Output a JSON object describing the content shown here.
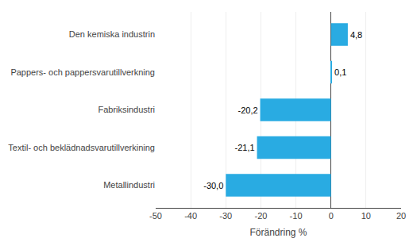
{
  "chart_data": {
    "type": "bar",
    "orientation": "horizontal",
    "categories": [
      "Metallindustri",
      "Textil- och beklädnadsvarutillverkining",
      "Fabriksindustri",
      "Pappers- och pappersvarutillverkning",
      "Den kemiska industrin"
    ],
    "values": [
      -30.0,
      -21.1,
      -20.2,
      0.1,
      4.8
    ],
    "value_labels": [
      "-30,0",
      "-21,1",
      "-20,2",
      "0,1",
      "4,8"
    ],
    "data_labels": true,
    "color": "#29ABE2",
    "xlabel": "Förändring %",
    "xlim": [
      -50,
      20
    ],
    "xticks": [
      -50,
      -40,
      -30,
      -20,
      -10,
      0,
      10,
      20
    ],
    "grid": true
  }
}
